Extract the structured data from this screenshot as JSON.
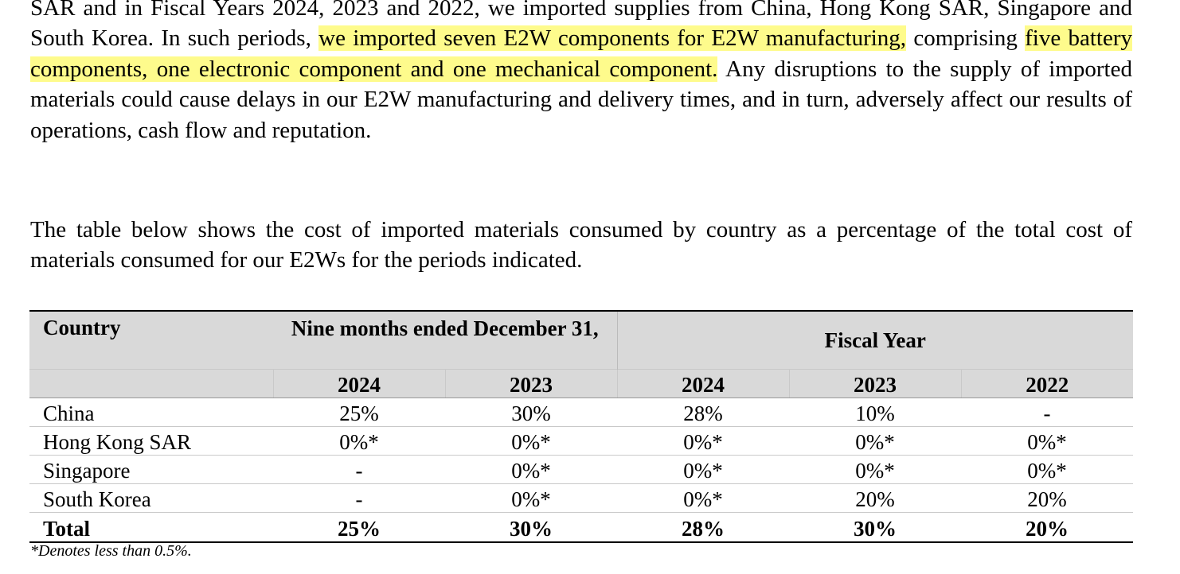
{
  "paragraph1": {
    "part1": "SAR and in Fiscal Years 2024, 2023 and 2022, we imported supplies from China, Hong Kong SAR, Singapore and South Korea. In such periods, ",
    "highlight1": "we imported seven E2W components for E2W manufacturing,",
    "part2": " comprising ",
    "highlight2": "five battery components, one electronic component and one mechanical component.",
    "part3": " Any disruptions to the supply of imported materials could cause delays in our E2W manufacturing and delivery times, and in turn, adversely affect our results of operations, cash flow and reputation."
  },
  "paragraph2": "The table below shows the cost of imported materials consumed by country as a percentage of the total cost of materials consumed for our E2Ws for the periods indicated.",
  "table": {
    "country_header": "Country",
    "nine_months_header": "Nine months ended December 31,",
    "fiscal_year_header": "Fiscal Year",
    "years": [
      "2024",
      "2023",
      "2024",
      "2023",
      "2022"
    ],
    "rows": [
      {
        "label": "China",
        "values": [
          "25%",
          "30%",
          "28%",
          "10%",
          "-"
        ]
      },
      {
        "label": "Hong Kong SAR",
        "values": [
          "0%*",
          "0%*",
          "0%*",
          "0%*",
          "0%*"
        ]
      },
      {
        "label": "Singapore",
        "values": [
          "-",
          "0%*",
          "0%*",
          "0%*",
          "0%*"
        ]
      },
      {
        "label": "South Korea",
        "values": [
          "-",
          "0%*",
          "0%*",
          "20%",
          "20%"
        ]
      }
    ],
    "total": {
      "label": "Total",
      "values": [
        "25%",
        "30%",
        "28%",
        "30%",
        "20%"
      ]
    }
  },
  "footnote": "*Denotes less than 0.5%.",
  "colors": {
    "highlight": "#fefb8c",
    "header_bg": "#d9d9d9"
  }
}
